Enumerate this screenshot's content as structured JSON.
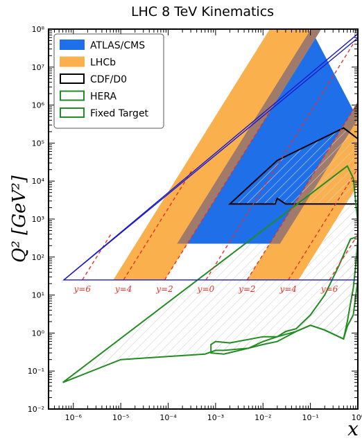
{
  "chart_data": {
    "type": "area",
    "title": "LHC 8 TeV Kinematics",
    "xlabel": "x",
    "ylabel": "Q² [GeV²]",
    "xscale": "log",
    "yscale": "log",
    "xlim": [
      3e-07,
      1
    ],
    "ylim": [
      0.01,
      100000000.0
    ],
    "x_ticks": [
      "10⁻⁶",
      "10⁻⁵",
      "10⁻⁴",
      "10⁻³",
      "10⁻²",
      "10⁻¹",
      "10⁰"
    ],
    "y_ticks": [
      "10⁻²",
      "10⁻¹",
      "10⁰",
      "10¹",
      "10²",
      "10³",
      "10⁴",
      "10⁵",
      "10⁶",
      "10⁷",
      "10⁸"
    ],
    "legend_position": "top-left",
    "legend": [
      {
        "label": "ATLAS/CMS",
        "style": "filled",
        "color": "#1f6fe8"
      },
      {
        "label": "LHCb",
        "style": "filled",
        "color": "#f9b04d"
      },
      {
        "label": "CDF/D0",
        "style": "outline",
        "color": "#000000"
      },
      {
        "label": "HERA",
        "style": "outline",
        "color": "#228b22"
      },
      {
        "label": "Fixed Target",
        "style": "outline",
        "color": "#228b22"
      }
    ],
    "rapidity_labels": [
      "y=6",
      "y=4",
      "y=2",
      "y=0",
      "y=2",
      "y=4",
      "y=6"
    ],
    "rapidity_values": [
      6,
      4,
      2,
      0,
      -2,
      -4,
      -6
    ],
    "sqrt_s_GeV": 8000,
    "q2_min": 25,
    "regions": {
      "atlas_cms": {
        "color": "#1f6fe8",
        "rapidity_range": [
          -2.5,
          2.5
        ],
        "q2_min": 225
      },
      "lhcb": {
        "color": "#f9b04d",
        "rapidity_ranges": [
          [
            2,
            4.5
          ],
          [
            -4.5,
            -2
          ]
        ],
        "q2_min": 25
      },
      "overlap": {
        "color": "#a07a6a"
      },
      "cdf_d0": {
        "color": "#000000",
        "points": [
          [
            0.002,
            2500
          ],
          [
            0.02,
            35000
          ],
          [
            0.5,
            250000
          ],
          [
            1,
            130000
          ],
          [
            1,
            2500
          ],
          [
            0.1,
            2500
          ],
          [
            0.03,
            2500
          ],
          [
            0.02,
            3500
          ],
          [
            0.018,
            2500
          ],
          [
            0.002,
            2500
          ]
        ]
      },
      "hera": {
        "color": "#228b22",
        "points": [
          [
            6e-07,
            0.05
          ],
          [
            0.6,
            25000
          ],
          [
            0.8,
            12000
          ],
          [
            1,
            800
          ],
          [
            1,
            300
          ],
          [
            0.9,
            60
          ],
          [
            0.8,
            15
          ],
          [
            0.7,
            6
          ],
          [
            0.6,
            2
          ],
          [
            0.5,
            0.7
          ],
          [
            0.2,
            1.2
          ],
          [
            0.1,
            1.6
          ],
          [
            0.05,
            1.1
          ],
          [
            0.02,
            0.8
          ],
          [
            0.01,
            0.6
          ],
          [
            0.005,
            0.4
          ],
          [
            0.0015,
            0.35
          ],
          [
            0.001,
            0.35
          ],
          [
            0.0006,
            0.28
          ],
          [
            1e-05,
            0.2
          ],
          [
            6e-07,
            0.05
          ]
        ]
      },
      "fixed_target": {
        "color": "#228b22",
        "points": [
          [
            0.0008,
            0.3
          ],
          [
            0.0008,
            0.5
          ],
          [
            0.001,
            0.6
          ],
          [
            0.002,
            0.55
          ],
          [
            0.01,
            0.8
          ],
          [
            0.02,
            0.8
          ],
          [
            0.03,
            1.1
          ],
          [
            0.05,
            1.3
          ],
          [
            0.1,
            3
          ],
          [
            0.2,
            10
          ],
          [
            0.4,
            60
          ],
          [
            0.7,
            300
          ],
          [
            1,
            350
          ],
          [
            1,
            25
          ],
          [
            0.8,
            3
          ],
          [
            0.6,
            1.5
          ],
          [
            0.5,
            0.7
          ],
          [
            0.2,
            1.2
          ],
          [
            0.1,
            1.6
          ],
          [
            0.05,
            1.1
          ],
          [
            0.02,
            0.6
          ],
          [
            0.01,
            0.5
          ],
          [
            0.005,
            0.4
          ],
          [
            0.0015,
            0.28
          ],
          [
            0.0008,
            0.3
          ]
        ]
      }
    }
  }
}
